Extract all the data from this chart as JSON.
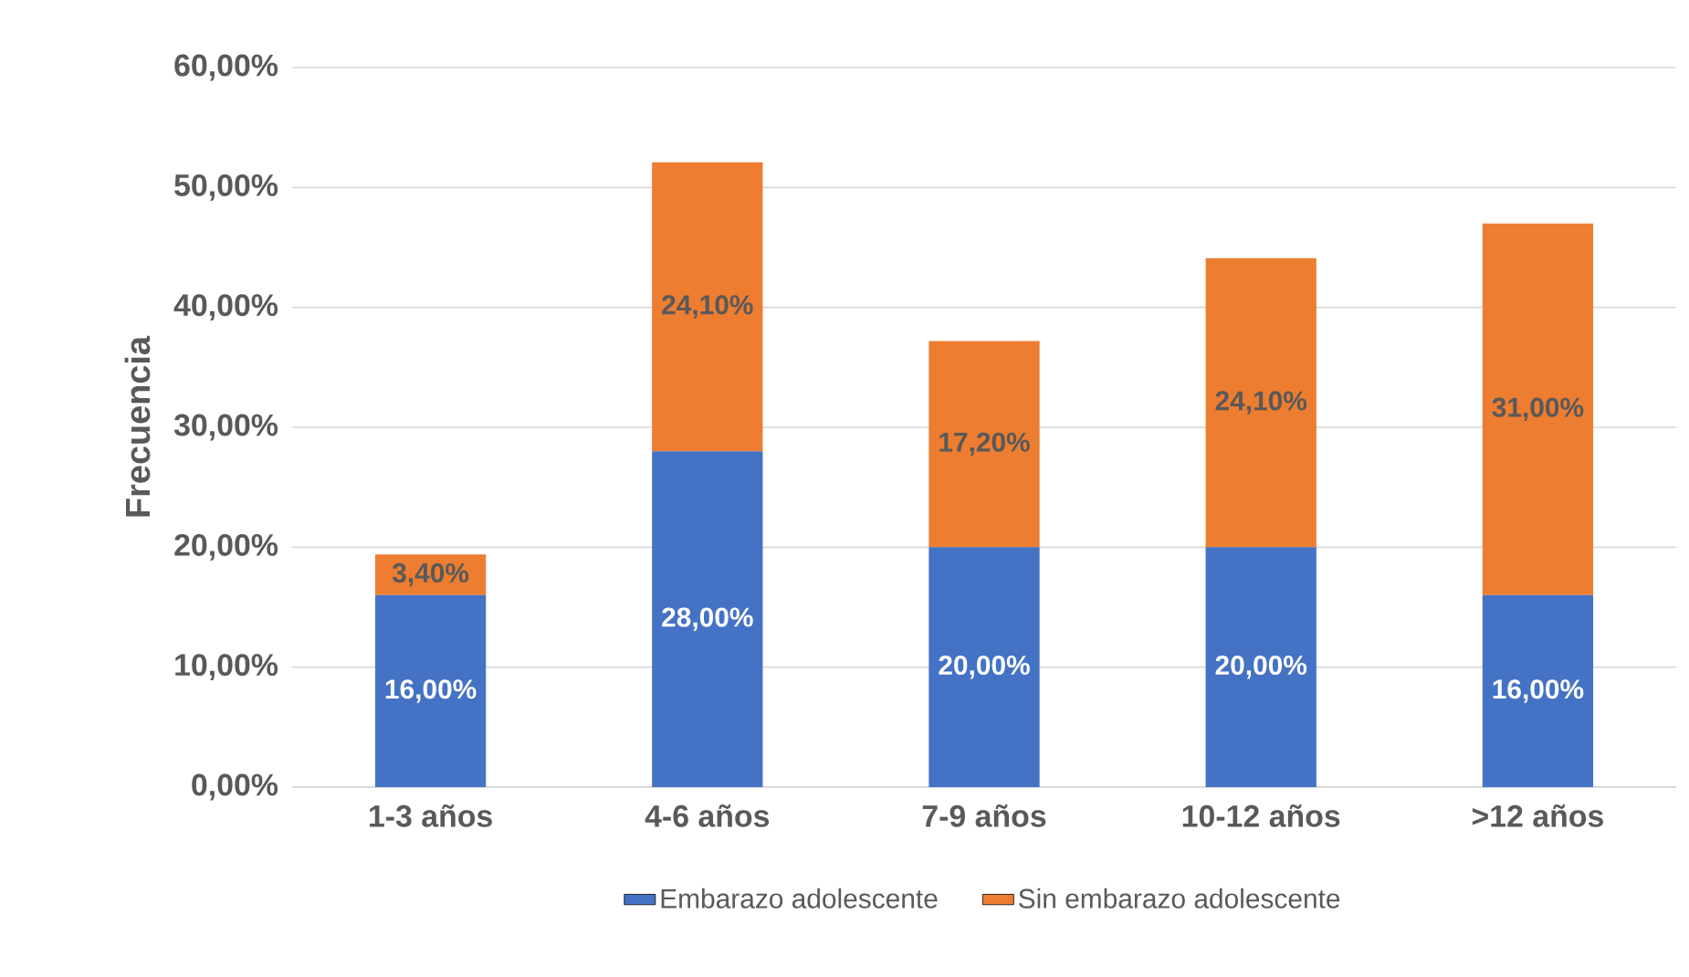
{
  "chart_data": {
    "type": "bar",
    "stacked": true,
    "ylabel": "Frecuencia",
    "categories": [
      "1-3 años",
      "4-6 años",
      "7-9 años",
      "10-12 años",
      ">12 años"
    ],
    "series": [
      {
        "name": "Embarazo adolescente",
        "color": "#4472c4",
        "values": [
          16,
          28,
          20,
          20,
          16
        ],
        "value_labels": [
          "16,00%",
          "28,00%",
          "20,00%",
          "20,00%",
          "16,00%"
        ]
      },
      {
        "name": "Sin embarazo adolescente",
        "color": "#ed7d31",
        "values": [
          3.4,
          24.1,
          17.2,
          24.1,
          31
        ],
        "value_labels": [
          "3,40%",
          "24,10%",
          "17,20%",
          "24,10%",
          "31,00%"
        ]
      }
    ],
    "ylim": [
      0,
      60
    ],
    "yticks": [
      {
        "value": 0,
        "label": "0,00%"
      },
      {
        "value": 10,
        "label": "10,00%"
      },
      {
        "value": 20,
        "label": "20,00%"
      },
      {
        "value": 30,
        "label": "30,00%"
      },
      {
        "value": 40,
        "label": "40,00%"
      },
      {
        "value": 50,
        "label": "50,00%"
      },
      {
        "value": 60,
        "label": "60,00%"
      }
    ],
    "grid": "y",
    "legend": "bottom"
  }
}
